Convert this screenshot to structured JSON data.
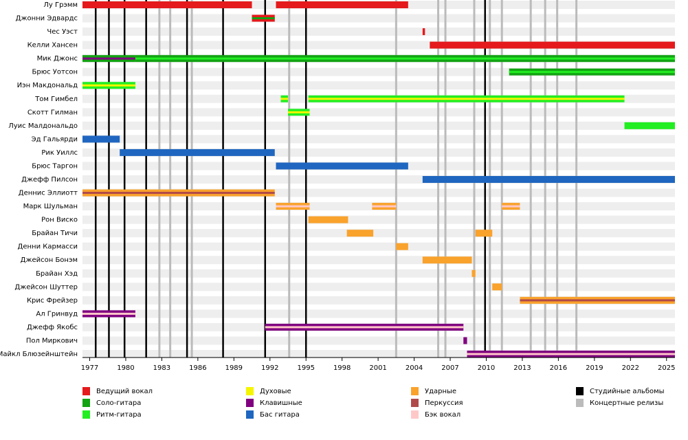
{
  "chart_data": {
    "type": "timeline",
    "xlim": [
      1976.4,
      2025.7
    ],
    "xticks": [
      1977,
      1980,
      1983,
      1986,
      1989,
      1992,
      1995,
      1998,
      2001,
      2004,
      2007,
      2010,
      2013,
      2016,
      2019,
      2022,
      2025
    ],
    "roles": [
      {
        "name": "Ведущий вокал",
        "color": "#e41a1c"
      },
      {
        "name": "Соло-гитара",
        "color": "#13a313"
      },
      {
        "name": "Ритм-гитара",
        "color": "#22ee22"
      },
      {
        "name": "Духовые",
        "color": "#f5f500"
      },
      {
        "name": "Клавишные",
        "color": "#800080"
      },
      {
        "name": "Бас гитара",
        "color": "#1f66c0"
      },
      {
        "name": "Ударные",
        "color": "#f9a22c"
      },
      {
        "name": "Перкуссия",
        "color": "#b04a4a"
      },
      {
        "name": "Бэк вокал",
        "color": "#ffc8c8"
      }
    ],
    "releases": [
      {
        "name": "Студийные альбомы",
        "color": "#000000",
        "years": [
          1977.5,
          1978.6,
          1979.9,
          1981.7,
          1985.1,
          1988.1,
          1991.6,
          1995.0,
          2009.9
        ]
      },
      {
        "name": "Концертные релизы",
        "color": "#bbbbbb",
        "years": [
          1982.8,
          1983.7,
          1985.5,
          1993.6,
          2002.5,
          2006.0,
          2006.6,
          2009.0,
          2010.3,
          2011.3,
          2013.7,
          2014.9,
          2015.9,
          2017.5
        ]
      }
    ],
    "members": [
      {
        "name": "Лу Грэмм",
        "periods": [
          {
            "start": 1976.4,
            "end": 1990.5,
            "role": "Ведущий вокал"
          },
          {
            "start": 1992.5,
            "end": 2003.5,
            "role": "Ведущий вокал"
          }
        ]
      },
      {
        "name": "Джонни Эдвардс",
        "periods": [
          {
            "start": 1990.5,
            "end": 1992.4,
            "role": "Ведущий вокал",
            "stripe": "Соло-гитара"
          }
        ]
      },
      {
        "name": "Чес Уэст",
        "periods": [
          {
            "start": 2004.7,
            "end": 2004.9,
            "role": "Ведущий вокал"
          }
        ]
      },
      {
        "name": "Келли Хансен",
        "periods": [
          {
            "start": 2005.3,
            "end": 2025.7,
            "role": "Ведущий вокал"
          }
        ]
      },
      {
        "name": "Мик Джонс",
        "periods": [
          {
            "start": 1976.4,
            "end": 1980.8,
            "role": "Соло-гитара",
            "stripe": "Клавишные"
          },
          {
            "start": 1980.8,
            "end": 2025.7,
            "role": "Соло-гитара",
            "stripe": "Ритм-гитара"
          }
        ]
      },
      {
        "name": "Брюс Уотсон",
        "periods": [
          {
            "start": 2011.9,
            "end": 2025.7,
            "role": "Соло-гитара",
            "stripe": "Ритм-гитара"
          }
        ]
      },
      {
        "name": "Иэн Макдональд",
        "periods": [
          {
            "start": 1976.4,
            "end": 1980.8,
            "role": "Ритм-гитара",
            "stripe": "Духовые"
          }
        ]
      },
      {
        "name": "Том Гимбел",
        "periods": [
          {
            "start": 1992.9,
            "end": 1993.5,
            "role": "Ритм-гитара",
            "stripe": "Духовые"
          },
          {
            "start": 1995.2,
            "end": 2021.5,
            "role": "Ритм-гитара",
            "stripe": "Духовые"
          }
        ]
      },
      {
        "name": "Скотт Гилман",
        "periods": [
          {
            "start": 1993.5,
            "end": 1995.3,
            "role": "Ритм-гитара",
            "stripe": "Духовые"
          }
        ]
      },
      {
        "name": "Луис Малдональдо",
        "periods": [
          {
            "start": 2021.5,
            "end": 2025.7,
            "role": "Ритм-гитара"
          }
        ]
      },
      {
        "name": "Эд Гальярди",
        "periods": [
          {
            "start": 1976.4,
            "end": 1979.5,
            "role": "Бас гитара"
          }
        ]
      },
      {
        "name": "Рик Уиллс",
        "periods": [
          {
            "start": 1979.5,
            "end": 1992.4,
            "role": "Бас гитара"
          }
        ]
      },
      {
        "name": "Брюс Таргон",
        "periods": [
          {
            "start": 1992.5,
            "end": 2003.5,
            "role": "Бас гитара"
          }
        ]
      },
      {
        "name": "Джефф Пилсон",
        "periods": [
          {
            "start": 2004.7,
            "end": 2025.7,
            "role": "Бас гитара"
          }
        ]
      },
      {
        "name": "Деннис Эллиотт",
        "periods": [
          {
            "start": 1976.4,
            "end": 1992.4,
            "role": "Ударные",
            "stripe": "Перкуссия"
          }
        ]
      },
      {
        "name": "Марк Шульман",
        "periods": [
          {
            "start": 1992.5,
            "end": 1995.3,
            "role": "Ударные",
            "stripe": "Бэк вокал"
          },
          {
            "start": 2000.5,
            "end": 2002.5,
            "role": "Ударные",
            "stripe": "Бэк вокал"
          },
          {
            "start": 2011.3,
            "end": 2012.8,
            "role": "Ударные",
            "stripe": "Бэк вокал"
          }
        ]
      },
      {
        "name": "Рон Виско",
        "periods": [
          {
            "start": 1995.2,
            "end": 1998.5,
            "role": "Ударные"
          }
        ]
      },
      {
        "name": "Брайан Тичи",
        "periods": [
          {
            "start": 1998.4,
            "end": 2000.6,
            "role": "Ударные"
          },
          {
            "start": 2009.1,
            "end": 2010.5,
            "role": "Ударные"
          }
        ]
      },
      {
        "name": "Денни Кармасси",
        "periods": [
          {
            "start": 2002.5,
            "end": 2003.5,
            "role": "Ударные"
          }
        ]
      },
      {
        "name": "Джейсон Бонэм",
        "periods": [
          {
            "start": 2004.7,
            "end": 2008.8,
            "role": "Ударные"
          }
        ]
      },
      {
        "name": "Брайан Хэд",
        "periods": [
          {
            "start": 2008.8,
            "end": 2009.1,
            "role": "Ударные"
          }
        ]
      },
      {
        "name": "Джейсон Шуттер",
        "periods": [
          {
            "start": 2010.5,
            "end": 2011.3,
            "role": "Ударные"
          }
        ]
      },
      {
        "name": "Крис Фрейзер",
        "periods": [
          {
            "start": 2012.8,
            "end": 2025.7,
            "role": "Ударные",
            "stripe": "Перкуссия"
          }
        ]
      },
      {
        "name": "Ал Гринвуд",
        "periods": [
          {
            "start": 1976.4,
            "end": 1980.8,
            "role": "Клавишные",
            "stripe": "Бэк вокал"
          }
        ]
      },
      {
        "name": "Джефф Якобс",
        "periods": [
          {
            "start": 1991.6,
            "end": 2008.1,
            "role": "Клавишные",
            "stripe": "Бэк вокал"
          }
        ]
      },
      {
        "name": "Пол Миркович",
        "periods": [
          {
            "start": 2008.1,
            "end": 2008.4,
            "role": "Клавишные"
          }
        ]
      },
      {
        "name": "Майкл Блюзейнштейн",
        "periods": [
          {
            "start": 2008.4,
            "end": 2025.7,
            "role": "Клавишные",
            "stripe": "Бэк вокал"
          }
        ]
      }
    ]
  }
}
